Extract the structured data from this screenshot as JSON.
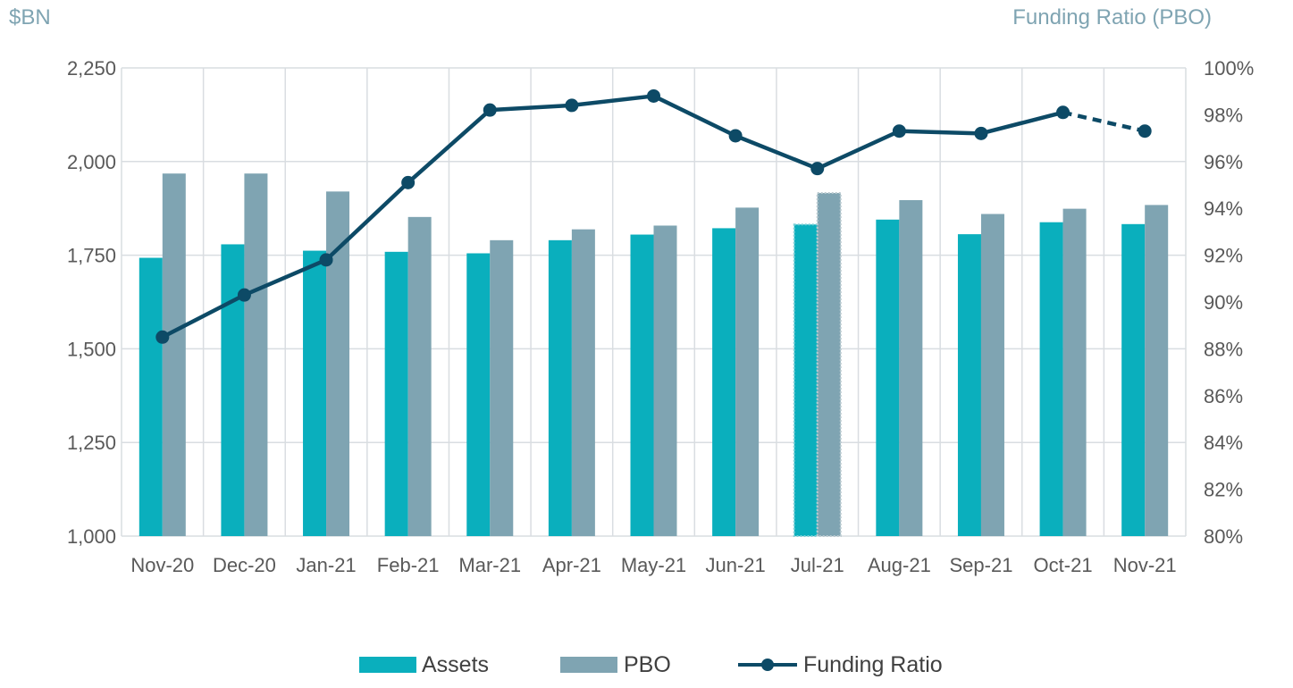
{
  "chart_data": {
    "type": "bar",
    "categories": [
      "Nov-20",
      "Dec-20",
      "Jan-21",
      "Feb-21",
      "Mar-21",
      "Apr-21",
      "May-21",
      "Jun-21",
      "Jul-21",
      "Aug-21",
      "Sep-21",
      "Oct-21",
      "Nov-21"
    ],
    "left_axis": {
      "unit_label": "$BN",
      "ylim": [
        1000,
        2250
      ],
      "ticks": [
        "1,000",
        "1,250",
        "1,500",
        "1,750",
        "2,000",
        "2,250"
      ],
      "tick_values": [
        1000,
        1250,
        1500,
        1750,
        2000,
        2250
      ]
    },
    "right_axis": {
      "unit_label": "Funding Ratio (PBO)",
      "ylim": [
        80,
        100
      ],
      "ticks": [
        "80%",
        "82%",
        "84%",
        "86%",
        "88%",
        "90%",
        "92%",
        "94%",
        "96%",
        "98%",
        "100%"
      ],
      "tick_values": [
        80,
        82,
        84,
        86,
        88,
        90,
        92,
        94,
        96,
        98,
        100
      ]
    },
    "series": [
      {
        "name": "Assets",
        "type": "bar",
        "axis": "left",
        "color": "#0aafbd",
        "values": [
          1743,
          1779,
          1762,
          1759,
          1755,
          1790,
          1805,
          1822,
          1832,
          1845,
          1806,
          1838,
          1833
        ]
      },
      {
        "name": "PBO",
        "type": "bar",
        "axis": "left",
        "color": "#7fa4b2",
        "values": [
          1968,
          1968,
          1920,
          1852,
          1790,
          1819,
          1829,
          1877,
          1916,
          1897,
          1860,
          1874,
          1884
        ]
      },
      {
        "name": "Funding Ratio",
        "type": "line",
        "axis": "right",
        "color": "#0d4a66",
        "values": [
          88.5,
          90.3,
          91.8,
          95.1,
          98.2,
          98.4,
          98.8,
          97.1,
          95.7,
          97.3,
          97.2,
          98.1,
          97.3
        ],
        "dashed_last_segment": true
      }
    ],
    "highlighted_category": "Jul-21",
    "grid": true,
    "legend_position": "bottom"
  },
  "colors": {
    "grid": "#d9dde1",
    "assets": "#0aafbd",
    "pbo": "#7fa4b2",
    "line": "#0d4a66",
    "unit_label": "#7fa4b2",
    "ticks": "#595959"
  }
}
